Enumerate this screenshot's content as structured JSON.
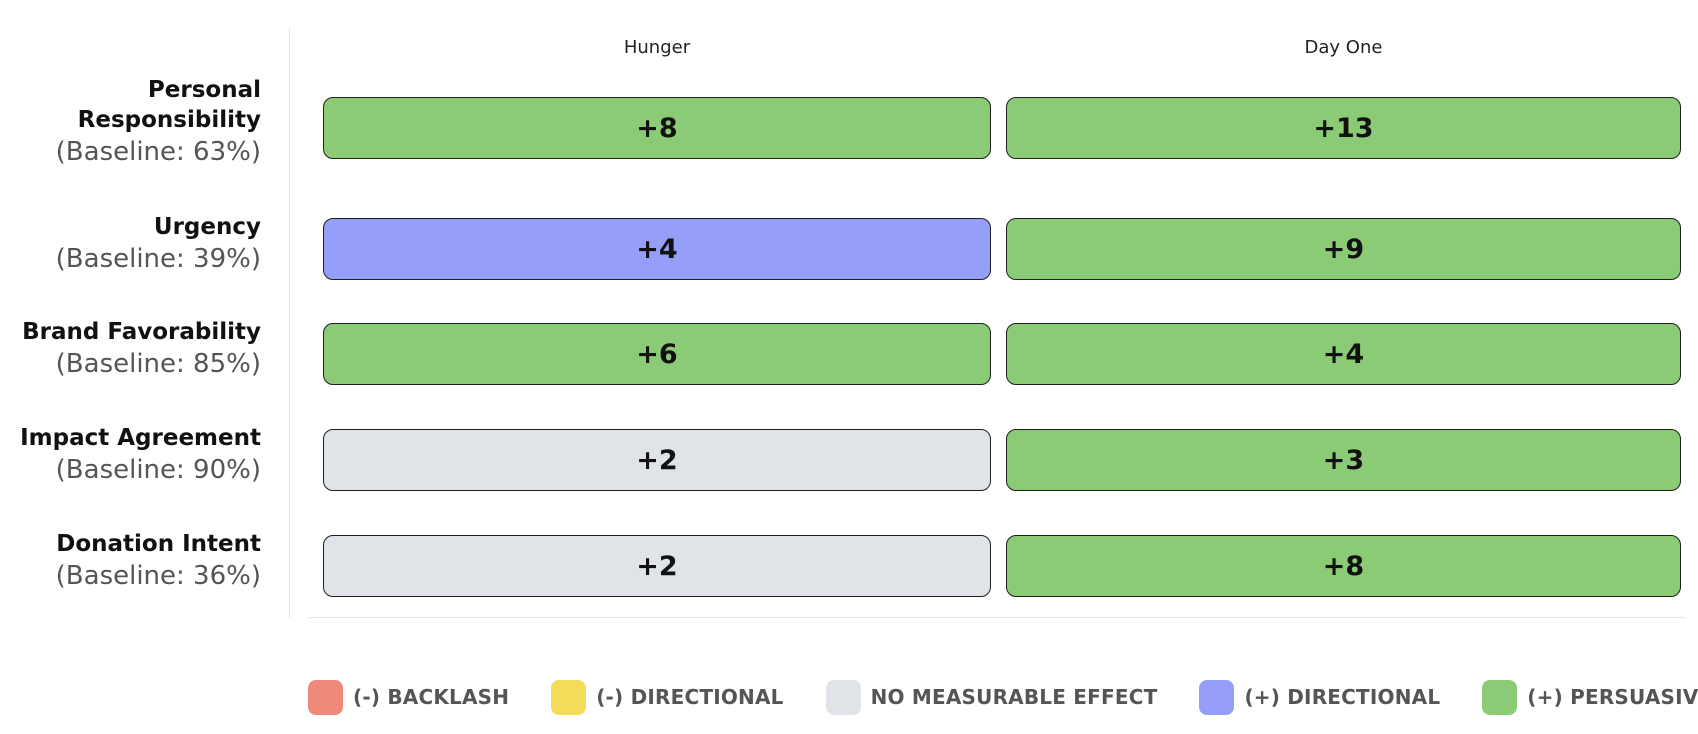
{
  "chart_data": {
    "type": "table",
    "columns": [
      "Hunger",
      "Day One"
    ],
    "rows": [
      {
        "label": "Personal Responsibility",
        "baseline": "(Baseline: 63%)",
        "values": [
          "+8",
          "+13"
        ],
        "effects": [
          "persuasive",
          "persuasive"
        ]
      },
      {
        "label": "Urgency",
        "baseline": "(Baseline: 39%)",
        "values": [
          "+4",
          "+9"
        ],
        "effects": [
          "pos_directional",
          "persuasive"
        ]
      },
      {
        "label": "Brand Favorability",
        "baseline": "(Baseline: 85%)",
        "values": [
          "+6",
          "+4"
        ],
        "effects": [
          "persuasive",
          "persuasive"
        ]
      },
      {
        "label": "Impact Agreement",
        "baseline": "(Baseline: 90%)",
        "values": [
          "+2",
          "+3"
        ],
        "effects": [
          "none",
          "persuasive"
        ]
      },
      {
        "label": "Donation Intent",
        "baseline": "(Baseline: 36%)",
        "values": [
          "+2",
          "+8"
        ],
        "effects": [
          "none",
          "persuasive"
        ]
      }
    ],
    "legend": [
      {
        "key": "backlash",
        "label": "(-) BACKLASH",
        "color": "#ef8a7a"
      },
      {
        "key": "neg_directional",
        "label": "(-) DIRECTIONAL",
        "color": "#f5dc58"
      },
      {
        "key": "none",
        "label": "NO MEASURABLE EFFECT",
        "color": "#e0e3e8"
      },
      {
        "key": "pos_directional",
        "label": "(+) DIRECTIONAL",
        "color": "#959ef8"
      },
      {
        "key": "persuasive",
        "label": "(+) PERSUASIVE",
        "color": "#8ccb76"
      }
    ],
    "legend_placement": "bottom"
  }
}
